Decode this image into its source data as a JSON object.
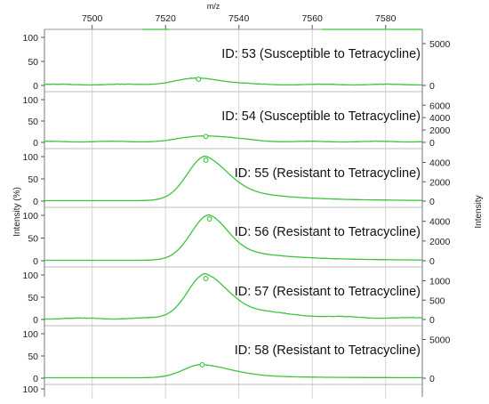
{
  "chart_data": {
    "type": "line",
    "xlabel": "m/z",
    "ylabel_left": "Intensity (%)",
    "ylabel_right": "Intensity",
    "xlim": [
      7487,
      7590
    ],
    "x_ticks": [
      7500,
      7520,
      7540,
      7560,
      7580
    ],
    "grid": true,
    "line_color": "#3cc43c",
    "panels": [
      {
        "label": "ID: 53 (Susceptible to Tetracycline)",
        "left_ticks": [
          "100",
          "50",
          "0"
        ],
        "right_ticks": [
          "5000",
          "0"
        ],
        "peak_x": 7529,
        "peak_pct": 13,
        "width_left": 6,
        "width_right": 7,
        "tail": 0,
        "noise": 2
      },
      {
        "label": "ID: 54 (Susceptible to Tetracycline)",
        "left_ticks": [
          "100",
          "50",
          "0"
        ],
        "right_ticks": [
          "6000",
          "4000",
          "2000",
          "0"
        ],
        "peak_x": 7531,
        "peak_pct": 14,
        "width_left": 6,
        "width_right": 8,
        "tail": 0,
        "noise": 2
      },
      {
        "label": "ID: 55 (Resistant to Tetracycline)",
        "left_ticks": [
          "100",
          "50",
          "0"
        ],
        "right_ticks": [
          "4000",
          "2000",
          "0"
        ],
        "peak_x": 7531,
        "peak_pct": 100,
        "width_left": 5,
        "width_right": 6,
        "tail": 45,
        "noise": 0
      },
      {
        "label": "ID: 56 (Resistant to Tetracycline)",
        "left_ticks": [
          "100",
          "50",
          "0"
        ],
        "right_ticks": [
          "4000",
          "2000",
          "0"
        ],
        "peak_x": 7532,
        "peak_pct": 100,
        "width_left": 5,
        "width_right": 5,
        "tail": 40,
        "noise": 0
      },
      {
        "label": "ID: 57 (Resistant to Tetracycline)",
        "left_ticks": [
          "100",
          "50",
          "0"
        ],
        "right_ticks": [
          "1000",
          "500",
          "0"
        ],
        "peak_x": 7531,
        "peak_pct": 100,
        "width_left": 5,
        "width_right": 6,
        "tail": 50,
        "noise": 3
      },
      {
        "label": "ID: 58 (Resistant to Tetracycline)",
        "left_ticks": [
          "100",
          "50",
          "0"
        ],
        "right_ticks": [
          "5000",
          "0"
        ],
        "peak_x": 7530,
        "peak_pct": 30,
        "width_left": 5,
        "width_right": 8,
        "tail": 12,
        "noise": 0
      }
    ],
    "bottom_left_tick": "100"
  }
}
